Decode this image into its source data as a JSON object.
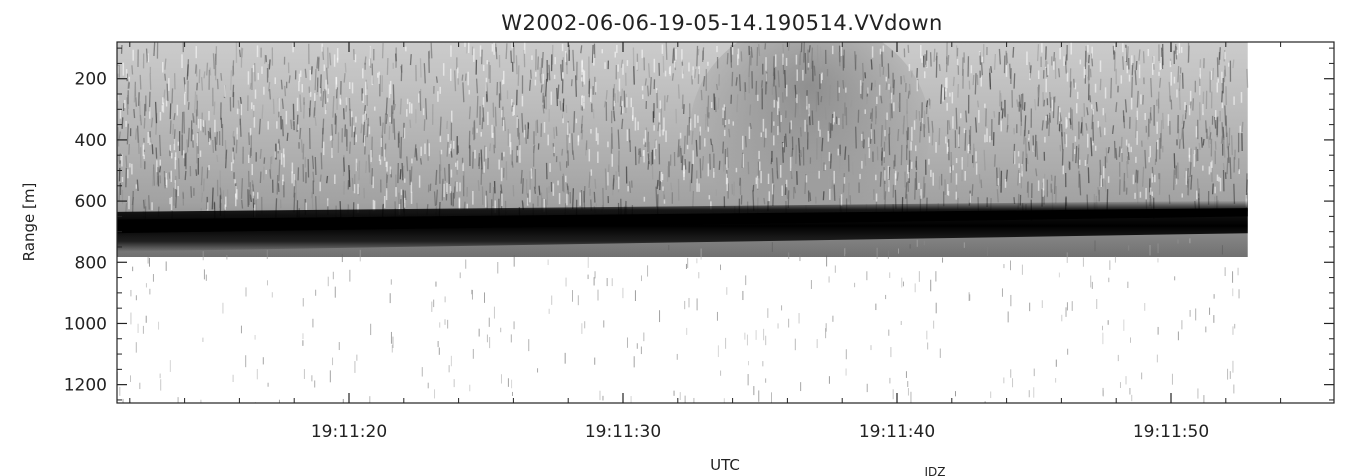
{
  "chart_data": {
    "type": "heatmap",
    "title": "W2002-06-06-19-05-14.190514.VVdown",
    "xlabel": "UTC",
    "ylabel": "Range [m]",
    "x_ticks": [
      "19:11:20",
      "19:11:30",
      "19:11:40",
      "19:11:50"
    ],
    "y_ticks": [
      "200",
      "400",
      "600",
      "800",
      "1000",
      "1200"
    ],
    "y_tick_values": [
      200,
      400,
      600,
      800,
      1000,
      1200
    ],
    "ylim": [
      1260,
      80
    ],
    "xlim_seconds": [
      71.5,
      107
    ],
    "x_tick_seconds": [
      80,
      90,
      100,
      110
    ],
    "data_end_seconds": 112.8,
    "colormap": "grayscale",
    "dark_layer": {
      "description": "strong return band",
      "range_top_start": 655,
      "range_top_end": 618,
      "range_bottom_start": 735,
      "range_bottom_end": 665
    },
    "footer_label": "IDZ"
  }
}
